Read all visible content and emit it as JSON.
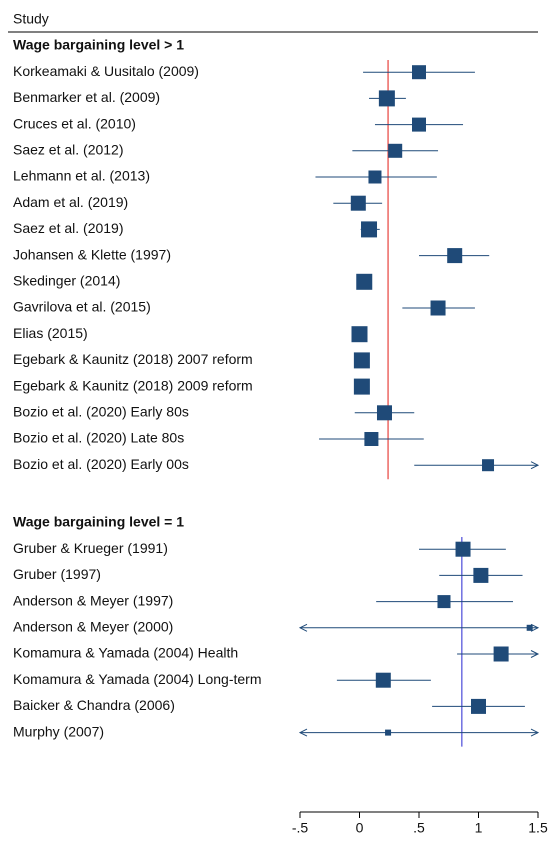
{
  "chart_data": {
    "type": "forest",
    "header": "Study",
    "xlim": [
      -0.5,
      1.5
    ],
    "xticks": [
      {
        "value": -0.5,
        "label": "-.5"
      },
      0,
      {
        "value": 0.5,
        "label": ".5"
      },
      1,
      1.5
    ],
    "marker_color": "#1f4a78",
    "groups": [
      {
        "title": "Wage bargaining level > 1",
        "line_color": "#e8413c",
        "overall": 0.24,
        "studies": [
          "Korkeamaki & Uusitalo (2009)",
          "Benmarker et al. (2009)",
          "Cruces et al. (2010)",
          "Saez et al. (2012)",
          "Lehmann et al. (2013)",
          "Adam et al. (2019)",
          "Saez et al. (2019)",
          "Johansen & Klette (1997)",
          "Skedinger (2014)",
          "Gavrilova et al. (2015)",
          "Elias (2015)",
          "Egebark & Kaunitz (2018) 2007 reform",
          "Egebark & Kaunitz (2018) 2009 reform",
          "Bozio et al. (2020) Early 80s",
          "Bozio et al. (2020) Late 80s",
          "Bozio et al. (2020) Early 00s"
        ],
        "estimates": [
          0.5,
          0.23,
          0.5,
          0.3,
          0.13,
          -0.01,
          0.08,
          0.8,
          0.04,
          0.66,
          0.0,
          0.02,
          0.02,
          0.21,
          0.1,
          1.08
        ],
        "ci_low": [
          0.03,
          0.08,
          0.13,
          -0.06,
          -0.37,
          -0.22,
          0.01,
          0.5,
          0.0,
          0.36,
          -0.03,
          -0.01,
          -0.01,
          -0.04,
          -0.34,
          0.46
        ],
        "ci_high": [
          0.97,
          0.39,
          0.87,
          0.66,
          0.65,
          0.19,
          0.17,
          1.09,
          0.08,
          0.97,
          0.03,
          0.05,
          0.05,
          0.46,
          0.54,
          1.7
        ],
        "weights": [
          14,
          16,
          14,
          14,
          13,
          15,
          16,
          15,
          16,
          15,
          16,
          16,
          16,
          15,
          14,
          12
        ]
      },
      {
        "title": "Wage bargaining level = 1",
        "line_color": "#4b4bd8",
        "overall": 0.86,
        "studies": [
          "Gruber & Krueger (1991)",
          "Gruber (1997)",
          "Anderson & Meyer (1997)",
          "Anderson & Meyer (2000)",
          "Komamura & Yamada (2004) Health",
          "Komamura & Yamada (2004) Long-term",
          "Baicker & Chandra (2006)",
          "Murphy (2007)"
        ],
        "estimates": [
          0.87,
          1.02,
          0.71,
          1.43,
          1.19,
          0.2,
          1.0,
          0.24
        ],
        "ci_low": [
          0.5,
          0.67,
          0.14,
          -0.6,
          0.82,
          -0.19,
          0.61,
          -0.6
        ],
        "ci_high": [
          1.23,
          1.37,
          1.29,
          1.6,
          1.6,
          0.6,
          1.39,
          1.6
        ],
        "weights": [
          15,
          15,
          13,
          6,
          15,
          15,
          15,
          6
        ]
      }
    ]
  }
}
